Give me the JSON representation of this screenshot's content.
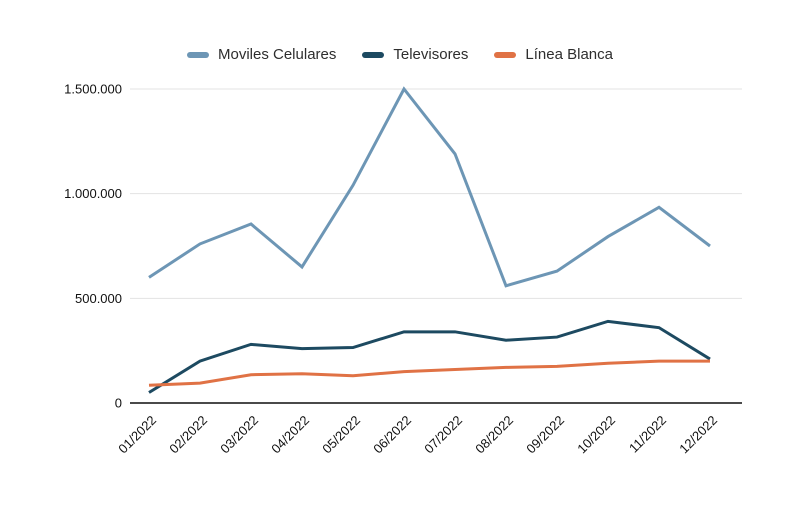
{
  "chart_data": {
    "type": "line",
    "title": "",
    "xlabel": "",
    "ylabel": "",
    "categories": [
      "01/2022",
      "02/2022",
      "03/2022",
      "04/2022",
      "05/2022",
      "06/2022",
      "07/2022",
      "08/2022",
      "09/2022",
      "10/2022",
      "11/2022",
      "12/2022"
    ],
    "series": [
      {
        "name": "Moviles Celulares",
        "color": "#6d96b5",
        "values": [
          600000,
          760000,
          855000,
          650000,
          1040000,
          1500000,
          1190000,
          560000,
          630000,
          795000,
          935000,
          750000
        ]
      },
      {
        "name": "Televisores",
        "color": "#1d4a61",
        "values": [
          50000,
          200000,
          280000,
          260000,
          265000,
          340000,
          340000,
          300000,
          315000,
          390000,
          360000,
          210000
        ]
      },
      {
        "name": "Línea Blanca",
        "color": "#e07245",
        "values": [
          85000,
          95000,
          135000,
          140000,
          130000,
          150000,
          160000,
          170000,
          175000,
          190000,
          200000,
          200000
        ]
      }
    ],
    "ylim": [
      0,
      1500000
    ],
    "yticks": [
      0,
      500000,
      1000000,
      1500000
    ],
    "ytick_labels": [
      "0",
      "500.000",
      "1.000.000",
      "1.500.000"
    ],
    "grid": true,
    "legend_position": "top",
    "x_label_rotation_deg": 45
  },
  "colors": {
    "background": "#ffffff",
    "grid": "#e3e3e3",
    "axis_line": "#4a4a4a",
    "tick_text": "#111111",
    "legend_text": "#2e2e2e"
  }
}
